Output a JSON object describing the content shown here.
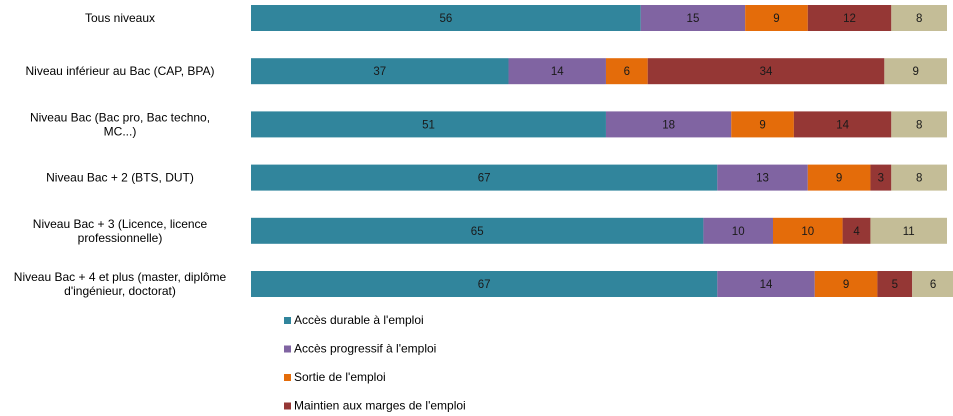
{
  "chart_data": {
    "type": "bar",
    "orientation": "horizontal",
    "stacked": true,
    "title": "",
    "xlabel": "",
    "ylabel": "",
    "xlim": [
      0,
      100
    ],
    "grid": false,
    "legend_position": "bottom",
    "categories": [
      [
        "Tous niveaux"
      ],
      [
        "Niveau inférieur au Bac (CAP, BPA)"
      ],
      [
        "Niveau  Bac (Bac pro, Bac techno,",
        "MC...)"
      ],
      [
        "Niveau Bac + 2 (BTS, DUT)"
      ],
      [
        "Niveau Bac + 3 (Licence, licence",
        "professionnelle)"
      ],
      [
        "Niveau Bac + 4 et plus (master, diplôme",
        "d'ingénieur, doctorat)"
      ]
    ],
    "series": [
      {
        "name": "Accès durable à l'emploi",
        "color": "#31859C",
        "values": [
          56,
          37,
          51,
          67,
          65,
          67
        ]
      },
      {
        "name": "Accès progressif à l'emploi",
        "color": "#8064A2",
        "values": [
          15,
          14,
          18,
          13,
          10,
          14
        ]
      },
      {
        "name": "Sortie de l'emploi",
        "color": "#E46C0A",
        "values": [
          9,
          6,
          9,
          9,
          10,
          9
        ]
      },
      {
        "name": "Maintien aux marges de l'emploi",
        "color": "#953735",
        "values": [
          12,
          34,
          14,
          3,
          4,
          5
        ]
      },
      {
        "name": "",
        "color": "#C4BD97",
        "values": [
          8,
          9,
          8,
          8,
          11,
          6
        ]
      }
    ]
  }
}
